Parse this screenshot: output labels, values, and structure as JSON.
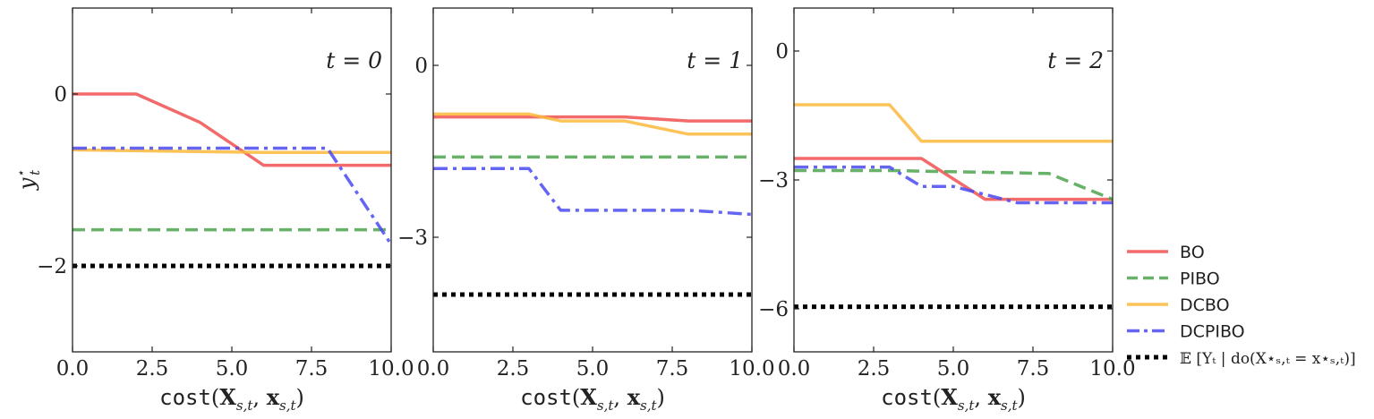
{
  "chart_data": [
    {
      "type": "line",
      "annotation": "t = 0",
      "xlabel": "cost(X_{s,t}, x_{s,t})",
      "ylabel": "y_t*",
      "xlim": [
        0,
        10
      ],
      "ylim": [
        -3,
        1
      ],
      "xticks": [
        "0.0",
        "2.5",
        "5.0",
        "7.5",
        "10.0"
      ],
      "yticks": [
        {
          "value": 0,
          "label": "0"
        },
        {
          "value": -2,
          "label": "−2"
        }
      ],
      "series": [
        {
          "name": "BO",
          "x": [
            0,
            2,
            4,
            6,
            10
          ],
          "y": [
            0,
            0,
            -0.33,
            -0.83,
            -0.83
          ]
        },
        {
          "name": "PIBO",
          "x": [
            0,
            10
          ],
          "y": [
            -1.58,
            -1.58
          ]
        },
        {
          "name": "DCBO",
          "x": [
            0,
            6,
            10
          ],
          "y": [
            -0.65,
            -0.68,
            -0.68
          ]
        },
        {
          "name": "DCPIBO",
          "x": [
            0,
            8,
            10
          ],
          "y": [
            -0.63,
            -0.63,
            -1.75
          ]
        },
        {
          "name": "E[Y_t | do(X*_{s,t} = x*_{s,t})]",
          "x": [
            0,
            10
          ],
          "y": [
            -2.0,
            -2.0
          ]
        }
      ]
    },
    {
      "type": "line",
      "annotation": "t = 1",
      "xlabel": "cost(X_{s,t}, x_{s,t})",
      "ylabel": "",
      "xlim": [
        0,
        10
      ],
      "ylim": [
        -5,
        1
      ],
      "xticks": [
        "0.0",
        "2.5",
        "5.0",
        "7.5",
        "10.0"
      ],
      "yticks": [
        {
          "value": 0,
          "label": "0"
        },
        {
          "value": -3,
          "label": "−3"
        }
      ],
      "series": [
        {
          "name": "BO",
          "x": [
            0,
            6,
            8,
            10
          ],
          "y": [
            -0.9,
            -0.9,
            -0.97,
            -0.97
          ]
        },
        {
          "name": "PIBO",
          "x": [
            0,
            10
          ],
          "y": [
            -1.6,
            -1.6
          ]
        },
        {
          "name": "DCBO",
          "x": [
            0,
            3,
            4,
            6,
            8,
            10
          ],
          "y": [
            -0.85,
            -0.85,
            -0.97,
            -0.97,
            -1.2,
            -1.2
          ]
        },
        {
          "name": "DCPIBO",
          "x": [
            0,
            3,
            4,
            8,
            10
          ],
          "y": [
            -1.8,
            -1.8,
            -2.53,
            -2.53,
            -2.6
          ]
        },
        {
          "name": "E[Y_t | do(X*_{s,t} = x*_{s,t})]",
          "x": [
            0,
            10
          ],
          "y": [
            -4.0,
            -4.0
          ]
        }
      ]
    },
    {
      "type": "line",
      "annotation": "t = 2",
      "xlabel": "cost(X_{s,t}, x_{s,t})",
      "ylabel": "",
      "xlim": [
        0,
        10
      ],
      "ylim": [
        -7,
        1
      ],
      "xticks": [
        "0.0",
        "2.5",
        "5.0",
        "7.5",
        "10.0"
      ],
      "yticks": [
        {
          "value": 0,
          "label": "0"
        },
        {
          "value": -3,
          "label": "−3"
        },
        {
          "value": -6,
          "label": "−6"
        }
      ],
      "series": [
        {
          "name": "BO",
          "x": [
            0,
            4,
            6,
            10
          ],
          "y": [
            -2.5,
            -2.5,
            -3.45,
            -3.45
          ]
        },
        {
          "name": "PIBO",
          "x": [
            0,
            3,
            8,
            10
          ],
          "y": [
            -2.78,
            -2.78,
            -2.85,
            -3.45
          ]
        },
        {
          "name": "DCBO",
          "x": [
            0,
            3,
            4,
            10
          ],
          "y": [
            -1.25,
            -1.25,
            -2.1,
            -2.1
          ]
        },
        {
          "name": "DCPIBO",
          "x": [
            0,
            3,
            4,
            5,
            7,
            10
          ],
          "y": [
            -2.7,
            -2.7,
            -3.15,
            -3.15,
            -3.53,
            -3.53
          ]
        },
        {
          "name": "E[Y_t | do(X*_{s,t} = x*_{s,t})]",
          "x": [
            0,
            10
          ],
          "y": [
            -5.95,
            -5.95
          ]
        }
      ]
    }
  ],
  "legend": {
    "placement": "lower-right outside",
    "items": [
      {
        "label": "BO",
        "color": "#f05050",
        "dash": "solid"
      },
      {
        "label": "PIBO",
        "color": "#4ea34e",
        "dash": "dashed"
      },
      {
        "label": "DCBO",
        "color": "#fbb93c",
        "dash": "solid"
      },
      {
        "label": "DCPIBO",
        "color": "#4a4af2",
        "dash": "dashdot"
      },
      {
        "label": "𝔼 [Yₜ | do(X⋆ₛ,ₜ = x⋆ₛ,ₜ)]",
        "color": "#000000",
        "dash": "dotted"
      }
    ]
  },
  "colors": {
    "BO": "#f05050",
    "PIBO": "#4ea34e",
    "DCBO": "#fbb93c",
    "DCPIBO": "#4a4af2",
    "E[Y_t | do(X*_{s,t} = x*_{s,t})]": "#000000"
  },
  "labels": {
    "xlabel_text": "cost(",
    "xlabel_X": "X",
    "xlabel_sub": "s,t",
    "xlabel_sep": ", ",
    "xlabel_x": "x",
    "xlabel_close": ")",
    "ylabel_y": "y",
    "ylabel_sub": "t",
    "ylabel_star": "⋆"
  }
}
